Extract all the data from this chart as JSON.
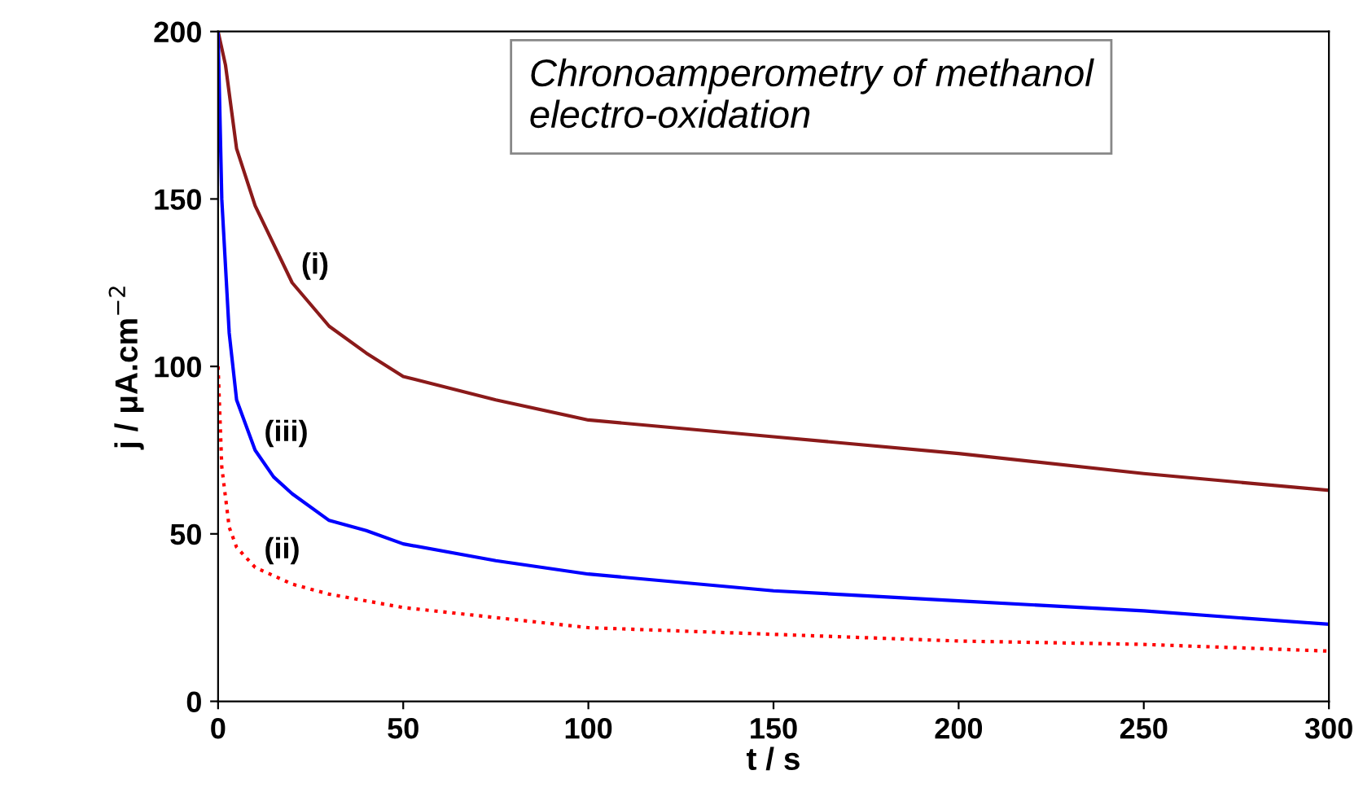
{
  "chart_data": {
    "type": "line",
    "xlabel": "t / s",
    "ylabel": "j / μA.cm$^{−2}$",
    "xlim": [
      0,
      300
    ],
    "ylim": [
      0,
      200
    ],
    "xticks": [
      0,
      50,
      100,
      150,
      200,
      250,
      300
    ],
    "yticks": [
      0,
      50,
      100,
      150,
      200
    ],
    "grid": false,
    "legend": false,
    "marker": "none",
    "series": [
      {
        "name": "(i)",
        "color": "#8b1a1a",
        "line_style": "solid",
        "x": [
          0,
          2,
          5,
          10,
          20,
          30,
          40,
          50,
          75,
          100,
          150,
          200,
          250,
          300
        ],
        "values": [
          200,
          190,
          165,
          148,
          125,
          112,
          104,
          97,
          90,
          84,
          79,
          74,
          68,
          63
        ]
      },
      {
        "name": "(iii)",
        "color": "#0000ff",
        "line_style": "solid",
        "x": [
          0,
          1,
          3,
          5,
          10,
          15,
          20,
          30,
          40,
          50,
          75,
          100,
          150,
          200,
          250,
          300
        ],
        "values": [
          200,
          150,
          110,
          90,
          75,
          67,
          62,
          54,
          51,
          47,
          42,
          38,
          33,
          30,
          27,
          23
        ]
      },
      {
        "name": "(ii)",
        "color": "#ff0000",
        "line_style": "dotted",
        "x": [
          0,
          1,
          3,
          5,
          10,
          20,
          30,
          50,
          75,
          100,
          150,
          200,
          250,
          300
        ],
        "values": [
          100,
          70,
          52,
          46,
          40,
          35,
          32,
          28,
          25,
          22,
          20,
          18,
          17,
          15
        ]
      }
    ],
    "annotations": [
      "Chronoamperometry of methanol electro-oxidation"
    ]
  }
}
